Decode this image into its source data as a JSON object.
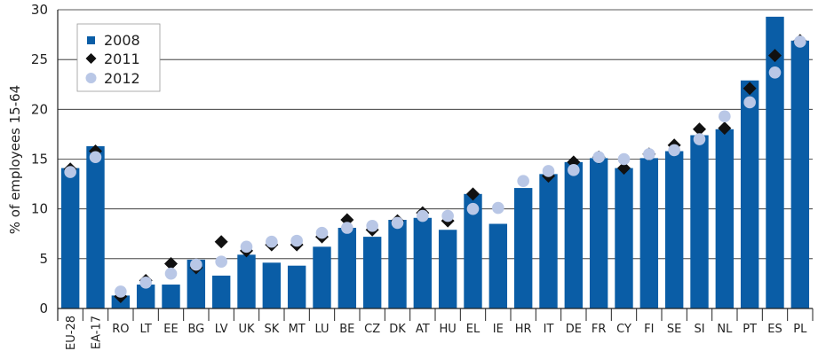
{
  "chart_data": {
    "type": "bar",
    "ylabel": "% of employees 15-64",
    "ylim": [
      0,
      30
    ],
    "yticks": [
      0,
      5,
      10,
      15,
      20,
      25,
      30
    ],
    "grid": "horizontal",
    "legend_position": "top-left",
    "categories": [
      "EU-28",
      "EA-17",
      "RO",
      "LT",
      "EE",
      "BG",
      "LV",
      "UK",
      "SK",
      "MT",
      "LU",
      "BE",
      "CZ",
      "DK",
      "AT",
      "HU",
      "EL",
      "IE",
      "HR",
      "IT",
      "DE",
      "FR",
      "CY",
      "FI",
      "SE",
      "SI",
      "NL",
      "PT",
      "ES",
      "PL"
    ],
    "series": [
      {
        "name": "2008",
        "mark": "bar",
        "color": "#0a5da6",
        "values": [
          14.1,
          16.3,
          1.3,
          2.4,
          2.4,
          4.9,
          3.3,
          5.4,
          4.6,
          4.3,
          6.2,
          8.1,
          7.2,
          8.9,
          9.1,
          7.9,
          11.5,
          8.5,
          12.1,
          13.5,
          14.7,
          15.1,
          14.1,
          15.1,
          15.8,
          17.4,
          18.0,
          22.9,
          29.3,
          26.9
        ]
      },
      {
        "name": "2011",
        "mark": "diamond",
        "color": "#111111",
        "values": [
          14.0,
          15.8,
          1.2,
          2.8,
          4.5,
          4.1,
          6.7,
          5.8,
          6.4,
          6.4,
          7.2,
          8.9,
          7.9,
          8.8,
          9.6,
          8.8,
          11.5,
          null,
          null,
          13.3,
          14.7,
          15.2,
          14.1,
          15.5,
          16.4,
          18.0,
          18.1,
          22.1,
          25.4,
          26.9
        ]
      },
      {
        "name": "2012",
        "mark": "circle",
        "color": "#b9c7e6",
        "values": [
          13.7,
          15.2,
          1.7,
          2.6,
          3.5,
          4.4,
          4.7,
          6.2,
          6.7,
          6.8,
          7.6,
          8.1,
          8.3,
          8.6,
          9.3,
          9.3,
          10.0,
          10.1,
          12.8,
          13.8,
          13.9,
          15.2,
          15.0,
          15.5,
          15.9,
          17.0,
          19.3,
          20.7,
          23.7,
          26.8
        ]
      }
    ]
  },
  "colors": {
    "axis": "#222222",
    "grid": "#222222"
  }
}
